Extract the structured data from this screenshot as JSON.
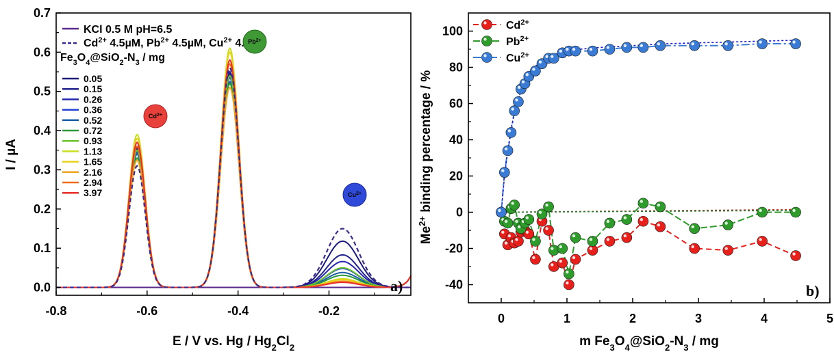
{
  "chart_data": [
    {
      "type": "line",
      "panel_label": "a)",
      "xlabel": "E / V vs. Hg / Hg2Cl2",
      "ylabel": "I / µA",
      "xlim": [
        -0.8,
        -0.02
      ],
      "ylim": [
        -0.02,
        0.7
      ],
      "xticks": [
        "-0.8",
        "-0.6",
        "-0.4",
        "-0.2"
      ],
      "xtick_values": [
        -0.8,
        -0.6,
        -0.4,
        -0.2
      ],
      "yticks": [
        "0.0",
        "0.1",
        "0.2",
        "0.3",
        "0.4",
        "0.5",
        "0.6",
        "0.7"
      ],
      "ytick_values": [
        0.0,
        0.1,
        0.2,
        0.3,
        0.4,
        0.5,
        0.6,
        0.7
      ],
      "legend": {
        "blank": "KCl 0.5 M pH=6.5",
        "ref": "Cd2+ 4.5µM, Pb2+ 4.5µM, Cu2+ 4.5µM",
        "header": "Fe3O4@SiO2-N3 / mg"
      },
      "badges": [
        {
          "label": "Cd2+",
          "color": "#e8413c"
        },
        {
          "label": "Pb2+",
          "color": "#3f9a36"
        },
        {
          "label": "Cu2+",
          "color": "#2f4ad9"
        }
      ],
      "peak_positions_V": {
        "Cd": -0.622,
        "Pb": -0.418,
        "Cu": -0.17
      },
      "reference_series": {
        "name": "Cd2+ 4.5µM, Pb2+ 4.5µM, Cu2+ 4.5µM",
        "color": "#3b2a8c",
        "cd": 0.31,
        "pb": 0.56,
        "cu": 0.15
      },
      "blank_series": {
        "name": "KCl 0.5 M pH=6.5",
        "color": "#5b2a8c"
      },
      "series": [
        {
          "name": "0.05",
          "color": "#1c1a7a",
          "cd": 0.355,
          "pb": 0.545,
          "cu": 0.118
        },
        {
          "name": "0.15",
          "color": "#23238f",
          "cd": 0.36,
          "pb": 0.55,
          "cu": 0.083
        },
        {
          "name": "0.26",
          "color": "#2424b0",
          "cd": 0.35,
          "pb": 0.54,
          "cu": 0.066
        },
        {
          "name": "0.36",
          "color": "#1f3fd6",
          "cd": 0.345,
          "pb": 0.535,
          "cu": 0.048
        },
        {
          "name": "0.52",
          "color": "#1c5ea6",
          "cd": 0.34,
          "pb": 0.525,
          "cu": 0.038
        },
        {
          "name": "0.72",
          "color": "#2a9a3a",
          "cd": 0.33,
          "pb": 0.52,
          "cu": 0.031
        },
        {
          "name": "0.93",
          "color": "#6bc42b",
          "cd": 0.35,
          "pb": 0.54,
          "cu": 0.05
        },
        {
          "name": "1.13",
          "color": "#c8de1f",
          "cd": 0.39,
          "pb": 0.61,
          "cu": 0.022
        },
        {
          "name": "1.65",
          "color": "#e8d21a",
          "cd": 0.38,
          "pb": 0.6,
          "cu": 0.02
        },
        {
          "name": "2.16",
          "color": "#f0a420",
          "cd": 0.325,
          "pb": 0.51,
          "cu": 0.016
        },
        {
          "name": "2.94",
          "color": "#f26a1e",
          "cd": 0.36,
          "pb": 0.57,
          "cu": 0.014
        },
        {
          "name": "3.97",
          "color": "#e8312a",
          "cd": 0.37,
          "pb": 0.58,
          "cu": 0.013
        }
      ]
    },
    {
      "type": "scatter",
      "panel_label": "b)",
      "xlabel": "m Fe3O4@SiO2-N3 / mg",
      "ylabel": "Me2+ binding percentage / %",
      "xlim": [
        -0.5,
        5
      ],
      "ylim": [
        -50,
        110
      ],
      "xticks": [
        "0",
        "1",
        "2",
        "3",
        "4",
        "5"
      ],
      "xtick_values": [
        0,
        1,
        2,
        3,
        4,
        5
      ],
      "yticks": [
        "-40",
        "-20",
        "0",
        "20",
        "40",
        "60",
        "80",
        "100"
      ],
      "ytick_values": [
        -40,
        -20,
        0,
        20,
        40,
        60,
        80,
        100
      ],
      "series": [
        {
          "name": "Cd2+",
          "color": "#e8201c",
          "fit_color": "#c0392b",
          "x": [
            0,
            0.05,
            0.1,
            0.15,
            0.2,
            0.26,
            0.3,
            0.36,
            0.42,
            0.52,
            0.62,
            0.72,
            0.8,
            0.93,
            1.03,
            1.13,
            1.39,
            1.65,
            1.91,
            2.16,
            2.42,
            2.94,
            3.45,
            3.97,
            4.48
          ],
          "y": [
            0,
            -12,
            -18,
            -14,
            -17,
            -16,
            -11,
            -10,
            -12,
            -26,
            -5,
            -10,
            -30,
            -28,
            -40,
            -26,
            -21,
            -16,
            -14,
            -5,
            -8,
            -20,
            -21,
            -16,
            -24
          ],
          "fit_x": [
            0,
            4.5
          ],
          "fit_y": [
            0,
            1.5
          ]
        },
        {
          "name": "Pb2+",
          "color": "#2e9c2a",
          "fit_color": "#2a7a2a",
          "x": [
            0,
            0.05,
            0.1,
            0.15,
            0.2,
            0.26,
            0.3,
            0.36,
            0.42,
            0.52,
            0.62,
            0.72,
            0.8,
            0.93,
            1.03,
            1.13,
            1.39,
            1.65,
            1.91,
            2.16,
            2.42,
            2.94,
            3.45,
            3.97,
            4.48
          ],
          "y": [
            0,
            -5,
            -6,
            2,
            4,
            -6,
            -9,
            -6,
            -4,
            -16,
            -1,
            3,
            -21,
            -20,
            -34,
            -14,
            -16,
            -6,
            -4,
            5,
            3,
            -9,
            -7,
            0,
            0
          ],
          "fit_x": [
            0,
            4.5
          ],
          "fit_y": [
            0,
            1
          ]
        },
        {
          "name": "Cu2+",
          "color": "#3a7bd5",
          "fit_color": "#1a1acf",
          "x": [
            0,
            0.05,
            0.1,
            0.15,
            0.2,
            0.26,
            0.3,
            0.36,
            0.42,
            0.52,
            0.62,
            0.72,
            0.8,
            0.93,
            1.03,
            1.13,
            1.39,
            1.65,
            1.91,
            2.16,
            2.42,
            2.94,
            3.45,
            3.97,
            4.48
          ],
          "y": [
            0,
            22,
            34,
            44,
            56,
            61,
            68,
            71,
            75,
            78,
            82,
            85,
            85,
            88,
            89,
            89,
            89,
            90,
            91,
            91,
            92,
            92,
            92,
            93,
            93
          ],
          "fit_x": [
            0,
            0.05,
            0.1,
            0.15,
            0.2,
            0.3,
            0.4,
            0.5,
            0.6,
            0.8,
            1,
            1.2,
            1.5,
            2,
            2.5,
            3,
            3.5,
            4,
            4.5
          ],
          "fit_y": [
            0,
            20,
            34,
            46,
            55,
            67,
            75,
            80,
            83,
            87,
            89,
            90,
            91,
            92,
            93,
            93.5,
            94,
            94.5,
            95
          ]
        }
      ]
    }
  ]
}
